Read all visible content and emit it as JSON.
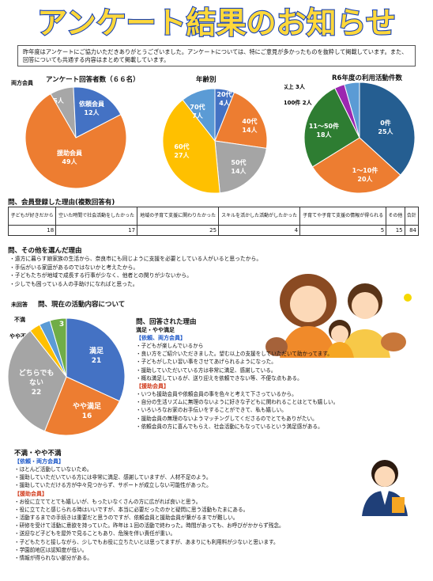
{
  "title": "アンケート結果のお知らせ",
  "intro": "昨年度はアンケートにご協力いただきありがとうございました。アンケートについては、特にご意見が多かったものを抜粋して掲載しています。また、回答についても共通する内容はまとめて掲載しています。",
  "charts": {
    "respondents": {
      "title": "アンケート回答者数（６６名）",
      "outside_label": "両方会員",
      "slices": [
        {
          "label": "5人",
          "value": 5,
          "color": "#a7a7a7"
        },
        {
          "label": "依頼会員\n12人",
          "value": 12,
          "color": "#4472c4"
        },
        {
          "label": "援助会員\n49人",
          "value": 49,
          "color": "#ed7d31"
        }
      ]
    },
    "age": {
      "title": "年齢別",
      "slices": [
        {
          "label": "20代\n4人",
          "value": 4,
          "color": "#4472c4"
        },
        {
          "label": "40代\n14人",
          "value": 14,
          "color": "#ed7d31"
        },
        {
          "label": "50代\n14人",
          "value": 14,
          "color": "#a5a5a5"
        },
        {
          "label": "60代\n27人",
          "value": 27,
          "color": "#ffc000"
        },
        {
          "label": "70代\n7人",
          "value": 7,
          "color": "#5b9bd5"
        }
      ]
    },
    "activity": {
      "title": "R6年度の利用活動件数",
      "slices": [
        {
          "label": "0件\n25人",
          "value": 25,
          "color": "#255e91"
        },
        {
          "label": "1～10件\n20人",
          "value": 20,
          "color": "#ed7d31"
        },
        {
          "label": "11～50件\n18人",
          "value": 18,
          "color": "#2e7d32"
        },
        {
          "label": "51～100件 2人",
          "value": 2,
          "color": "#9c27b0"
        },
        {
          "label": "101件以上 3人",
          "value": 3,
          "color": "#5b9bd5"
        }
      ]
    },
    "current": {
      "title": "問、現在の活動内容について",
      "slices": [
        {
          "label": "満足\n21",
          "value": 21,
          "color": "#4472c4"
        },
        {
          "label": "やや満足\n16",
          "value": 16,
          "color": "#ed7d31"
        },
        {
          "label": "どちらでも\nない\n22",
          "value": 22,
          "color": "#a5a5a5"
        },
        {
          "label": "2",
          "value": 2,
          "color": "#ffc000"
        },
        {
          "label": "2",
          "value": 2,
          "color": "#5b9bd5"
        },
        {
          "label": "3",
          "value": 3,
          "color": "#70ad47"
        }
      ],
      "side_labels": [
        "未回答",
        "不満",
        "やや不満"
      ]
    }
  },
  "registration": {
    "title": "問、会員登録した理由(複数回答有)",
    "headers": [
      "子どもが好きだから",
      "空いた時間で社会活動をしたかった",
      "地域の子育て支援に関わりたかった",
      "スキルを活かした活動がしたかった",
      "子育てや子育て支援の情報が得られる",
      "その他",
      "合計"
    ],
    "values": [
      "18",
      "17",
      "25",
      "4",
      "5",
      "15",
      "84"
    ]
  },
  "other_reason": {
    "title": "問、その他を選んだ理由",
    "items": [
      "・遠方に暮らす娘家族の生活から、奈良市にも同じように支援を必要としている人がいると思ったから。",
      "・手伝がいる家庭があるのではないかと考えたから。",
      "・子どもたちが地域で成長する行事が少なく、他者との関りが少ないから。",
      "・少しでも困っている人の手助けになればと思った。"
    ]
  },
  "answer_reason": {
    "title": "問、回答された理由",
    "sub1": "満足・やや満足",
    "g1": "【依頼、両方会員】",
    "g1_items": [
      "・子どもが楽しんでいるから",
      "・良い方をご紹介いただきました。望む以上の支援をしていただいて助かってます。",
      "・子どもがしたい習い事をさせてあげられるようになった。",
      "・援助していただいている方は非常に満足、感謝している。",
      "・概ね満足しているが、送り迎えを依頼できない等、不便な点もある。"
    ],
    "g2": "【援助会員】",
    "g2_items": [
      "・いつも援助会員や依頼会員の事を色々と考えて下さっているから。",
      "・自分の生活リズムに無理のないように好きな子どもに関われることはとても嬉しい。",
      "・いろいろなお家のお手伝いをすることができて、私も嬉しい。",
      "・援助会員の無理のないようマッチングしてくださるのでとてもありがたい。",
      "・依頼会員の方に喜んでもらえ、社会活動にもなっているという満足感がある。"
    ]
  },
  "dissatisfied": {
    "sub": "不満・やや不満",
    "g1": "【依頼・両方会員】",
    "g1_items": [
      "・ほとんど活動していないため。",
      "・援助していただいている方には非常に満足、感謝していますが、人材不足のよう。",
      "・援助していただける方が中々見つからず、サポートが成立しない可能性があった。"
    ],
    "g2": "【援助会員】",
    "g2_items": [
      "・お役に立ててとても嬉しいが、もったいなくさんの方に広がれば良いと思う。",
      "・役に立てたと感じられる時はいいですが、本当に必要だったのかと疑問に思う活動もたまにある。",
      "・活動するまでの手続きは重要だと思うのですが、依頼会員と援助会員が繋がるまでが難しい。",
      "・研修を受けて活動に意欲を持っていた。昨年は１回の活動で終わった。時間があっても、お呼びがかからず残念。",
      "・送迎など子どもを屋外で見ることもあり、危険を伴い責任が重い。",
      "・子どもたちと接しながら、少しでもお役に立ちたいとは思ってますが、あまりにも利用料が少ないと思います。",
      "・学園前地区は認知度が低い。",
      "・情報が得られない部分がある。"
    ]
  }
}
